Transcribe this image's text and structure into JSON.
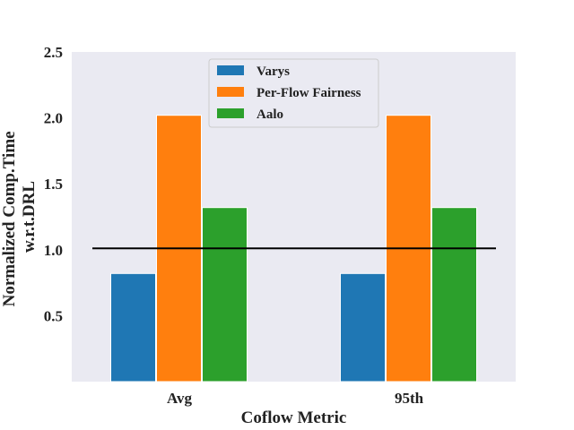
{
  "chart_data": {
    "type": "bar",
    "categories": [
      "Avg",
      "95th"
    ],
    "series": [
      {
        "name": "Varys",
        "values": [
          0.82,
          0.82
        ],
        "color": "#1f77b4"
      },
      {
        "name": "Per-Flow Fairness",
        "values": [
          2.02,
          2.02
        ],
        "color": "#ff7f0e"
      },
      {
        "name": "Aalo",
        "values": [
          1.32,
          1.32
        ],
        "color": "#2ca02c"
      }
    ],
    "reference_line": {
      "y": 1.01,
      "color": "#000000"
    },
    "xlabel": "Coflow Metric",
    "ylabel_lines": [
      "Normalized Comp.Time",
      "w.r.t.DRL"
    ],
    "ylim": [
      0.0,
      2.5
    ],
    "yticks": [
      0.5,
      1.0,
      1.5,
      2.0,
      2.5
    ],
    "ytick_labels": [
      "0.5",
      "1.0",
      "1.5",
      "2.0",
      "2.5"
    ],
    "grid": false,
    "legend_position": "top-center",
    "background_color": "#eaeaf2"
  }
}
